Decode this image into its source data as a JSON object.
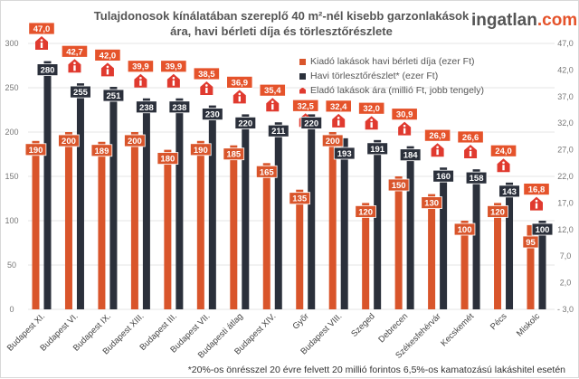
{
  "logo": {
    "main": "ingatlan",
    "suffix": ".com"
  },
  "footnote": "*20%-os önrésszel 20 évre felvett 20 millió forintos 6,5%-os kamatozású lakáshitel esetén",
  "chart_data": {
    "type": "bar",
    "title": "Tulajdonosok kínálatában szereplő 40 m²-nél kisebb garzonlakások ára, havi bérleti díja és törlesztőrészlete",
    "title_lines": [
      "Tulajdonosok kínálatában szereplő 40 m²-nél kisebb garzonlakások",
      "ára, havi bérleti díja és törlesztőrészlete"
    ],
    "categories": [
      "Budapest XI.",
      "Budapest VI.",
      "Budapest IX.",
      "Budapest XIII.",
      "Budapest III.",
      "Budapest VII.",
      "Budapesti átlag",
      "Budapest XIV.",
      "Győr",
      "Budapest VIII.",
      "Szeged",
      "Debrecen",
      "Székesfehérvár",
      "Kecskemét",
      "Pécs",
      "Miskolc"
    ],
    "series": [
      {
        "name": "Kiadó lakások havi bérleti díja (ezer Ft)",
        "type": "bar",
        "axis": "left",
        "color": "#d9552b",
        "values": [
          190,
          200,
          189,
          200,
          180,
          190,
          185,
          165,
          135,
          200,
          120,
          150,
          130,
          100,
          120,
          95
        ]
      },
      {
        "name": "Havi törlesztőrészlet* (ezer Ft)",
        "type": "bar",
        "axis": "left",
        "color": "#2b303b",
        "values": [
          280,
          255,
          251,
          238,
          238,
          230,
          220,
          211,
          220,
          193,
          191,
          184,
          160,
          158,
          143,
          100
        ]
      },
      {
        "name": "Eladó lakások ára (millió Ft, jobb tengely)",
        "type": "marker",
        "marker": "house-icon",
        "axis": "right",
        "color": "#e03a2f",
        "values": [
          47.0,
          42.7,
          42.0,
          39.9,
          39.9,
          38.5,
          36.9,
          35.4,
          32.5,
          32.4,
          32.0,
          30.9,
          26.9,
          26.6,
          24.0,
          16.8
        ]
      }
    ],
    "ylim": [
      0,
      300
    ],
    "yticks": [
      "0",
      "50",
      "100",
      "150",
      "200",
      "250",
      "300"
    ],
    "y2lim": [
      -3.0,
      47.0
    ],
    "y2ticks": [
      "- 3,0",
      "2,0",
      "7,0",
      "12,0",
      "17,0",
      "22,0",
      "27,0",
      "32,0",
      "37,0",
      "42,0",
      "47,0"
    ],
    "grid": true,
    "legend": "top-right",
    "decimal_separator": ","
  }
}
